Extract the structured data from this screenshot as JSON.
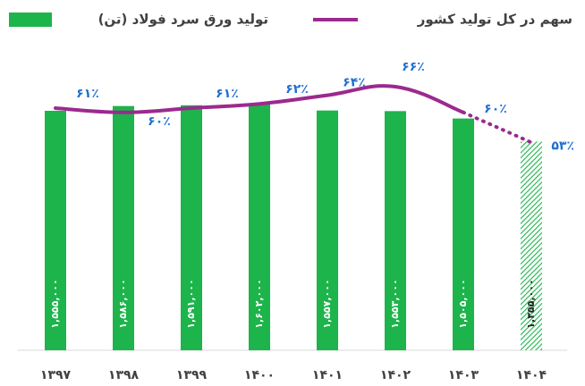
{
  "chart_data": {
    "type": "bar-line",
    "categories": [
      "۱۳۹۷",
      "۱۳۹۸",
      "۱۳۹۹",
      "۱۴۰۰",
      "۱۴۰۱",
      "۱۴۰۲",
      "۱۴۰۳",
      "۱۴۰۴"
    ],
    "forecast": [
      false,
      false,
      false,
      false,
      false,
      false,
      false,
      true
    ],
    "series": [
      {
        "name": "تولید ورق سرد فولاد (تن)",
        "color": "#1db44b",
        "values": [
          1555000,
          1586000,
          1591000,
          1602000,
          1557000,
          1553000,
          1505000,
          1355000
        ],
        "value_labels": [
          "۱,۵۵۵,۰۰۰",
          "۱,۵۸۶,۰۰۰",
          "۱,۵۹۱,۰۰۰",
          "۱,۶۰۲,۰۰۰",
          "۱,۵۵۷,۰۰۰",
          "۱,۵۵۳,۰۰۰",
          "۱,۵۰۵,۰۰۰",
          "۱,۳۵۵,۰۰۰"
        ]
      },
      {
        "name": "سهم در کل تولید کشور",
        "color": "#9b2a8e",
        "axis": "y2",
        "values": [
          61,
          60,
          61,
          62,
          64,
          66,
          60,
          53
        ],
        "value_labels": [
          "۶۱٪",
          "۶۰٪",
          "۶۱٪",
          "۶۲٪",
          "۶۴٪",
          "۶۶٪",
          "۶۰٪",
          "۵۳٪"
        ]
      }
    ]
  }
}
